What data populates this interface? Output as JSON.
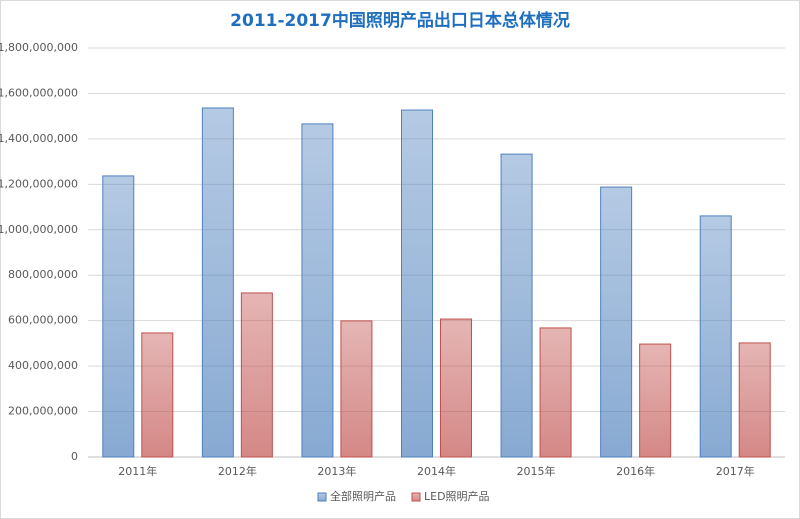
{
  "chart_data": {
    "type": "bar",
    "title": "2011-2017中国照明产品出口日本总体情况",
    "categories": [
      "2011年",
      "2012年",
      "2013年",
      "2014年",
      "2015年",
      "2016年",
      "2017年"
    ],
    "series": [
      {
        "name": "全部照明产品",
        "color": "#4f81bd",
        "values": [
          1237000000,
          1536000000,
          1466000000,
          1527000000,
          1333000000,
          1188000000,
          1061000000
        ]
      },
      {
        "name": "LED照明产品",
        "color": "#c0504d",
        "values": [
          546000000,
          722000000,
          599000000,
          607000000,
          568000000,
          497000000,
          502000000
        ]
      }
    ],
    "ylim": [
      0,
      1800000000
    ],
    "yticks": [
      {
        "value": 0,
        "label": "0"
      },
      {
        "value": 200000000,
        "label": "200,000,000"
      },
      {
        "value": 400000000,
        "label": "400,000,000"
      },
      {
        "value": 600000000,
        "label": "600,000,000"
      },
      {
        "value": 800000000,
        "label": "800,000,000"
      },
      {
        "value": 1000000000,
        "label": "1,000,000,000"
      },
      {
        "value": 1200000000,
        "label": "1,200,000,000"
      },
      {
        "value": 1400000000,
        "label": "1,400,000,000"
      },
      {
        "value": 1600000000,
        "label": "1,600,000,000"
      },
      {
        "value": 1800000000,
        "label": "1,800,000,000"
      }
    ],
    "grid": true,
    "legend": "bottom"
  }
}
